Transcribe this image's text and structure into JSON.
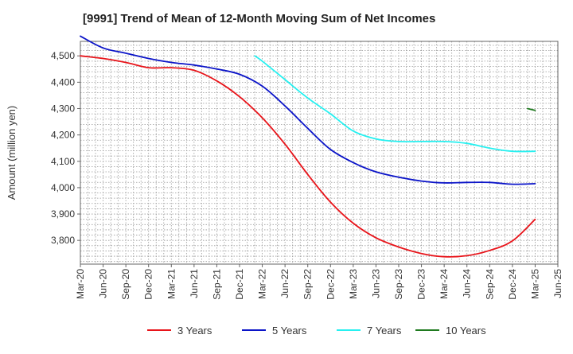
{
  "chart_data": {
    "type": "line",
    "title": "[9991]  Trend of Mean of 12-Month Moving Sum of Net Incomes",
    "xlabel": "",
    "ylabel": "Amount (million yen)",
    "x_ticks": [
      "Mar-20",
      "Jun-20",
      "Sep-20",
      "Dec-20",
      "Mar-21",
      "Jun-21",
      "Sep-21",
      "Dec-21",
      "Mar-22",
      "Jun-22",
      "Sep-22",
      "Dec-22",
      "Mar-23",
      "Jun-23",
      "Sep-23",
      "Dec-23",
      "Mar-24",
      "Jun-24",
      "Sep-24",
      "Dec-24",
      "Mar-25",
      "Jun-25"
    ],
    "y_ticks": [
      3800,
      3900,
      4000,
      4100,
      4200,
      4300,
      4400,
      4500
    ],
    "y_tick_labels": [
      "3,800",
      "3,900",
      "4,000",
      "4,100",
      "4,200",
      "4,300",
      "4,400",
      "4,500"
    ],
    "ylim": [
      3710,
      4555
    ],
    "grid": true,
    "legend_position": "bottom",
    "series": [
      {
        "name": "3 Years",
        "color": "#e8141a",
        "points": [
          [
            "Mar-20",
            4500
          ],
          [
            "Jun-20",
            4490
          ],
          [
            "Sep-20",
            4475
          ],
          [
            "Dec-20",
            4455
          ],
          [
            "Mar-21",
            4455
          ],
          [
            "Jun-21",
            4445
          ],
          [
            "Sep-21",
            4405
          ],
          [
            "Dec-21",
            4345
          ],
          [
            "Mar-22",
            4265
          ],
          [
            "Jun-22",
            4165
          ],
          [
            "Sep-22",
            4050
          ],
          [
            "Dec-22",
            3945
          ],
          [
            "Mar-23",
            3865
          ],
          [
            "Jun-23",
            3810
          ],
          [
            "Sep-23",
            3775
          ],
          [
            "Dec-23",
            3750
          ],
          [
            "Mar-24",
            3738
          ],
          [
            "Jun-24",
            3742
          ],
          [
            "Sep-24",
            3762
          ],
          [
            "Dec-24",
            3798
          ],
          [
            "Mar-25",
            3880
          ]
        ]
      },
      {
        "name": "5 Years",
        "color": "#0b14c8",
        "points": [
          [
            "Mar-20",
            4575
          ],
          [
            "Jun-20",
            4530
          ],
          [
            "Sep-20",
            4510
          ],
          [
            "Dec-20",
            4490
          ],
          [
            "Mar-21",
            4475
          ],
          [
            "Jun-21",
            4465
          ],
          [
            "Sep-21",
            4450
          ],
          [
            "Dec-21",
            4430
          ],
          [
            "Mar-22",
            4385
          ],
          [
            "Jun-22",
            4310
          ],
          [
            "Sep-22",
            4225
          ],
          [
            "Dec-22",
            4145
          ],
          [
            "Mar-23",
            4095
          ],
          [
            "Jun-23",
            4060
          ],
          [
            "Sep-23",
            4040
          ],
          [
            "Dec-23",
            4025
          ],
          [
            "Mar-24",
            4018
          ],
          [
            "Jun-24",
            4020
          ],
          [
            "Sep-24",
            4020
          ],
          [
            "Dec-24",
            4013
          ],
          [
            "Mar-25",
            4015
          ]
        ]
      },
      {
        "name": "7 Years",
        "color": "#26f0f0",
        "points": [
          [
            "Feb-22",
            4500
          ],
          [
            "Mar-22",
            4480
          ],
          [
            "Jun-22",
            4410
          ],
          [
            "Sep-22",
            4340
          ],
          [
            "Dec-22",
            4280
          ],
          [
            "Mar-23",
            4215
          ],
          [
            "Jun-23",
            4185
          ],
          [
            "Sep-23",
            4175
          ],
          [
            "Dec-23",
            4175
          ],
          [
            "Mar-24",
            4175
          ],
          [
            "Jun-24",
            4168
          ],
          [
            "Sep-24",
            4150
          ],
          [
            "Dec-24",
            4138
          ],
          [
            "Mar-25",
            4138
          ]
        ]
      },
      {
        "name": "10 Years",
        "color": "#1f7a1f",
        "points": [
          [
            "Feb-25",
            4300
          ],
          [
            "Mar-25",
            4293
          ]
        ]
      }
    ]
  }
}
